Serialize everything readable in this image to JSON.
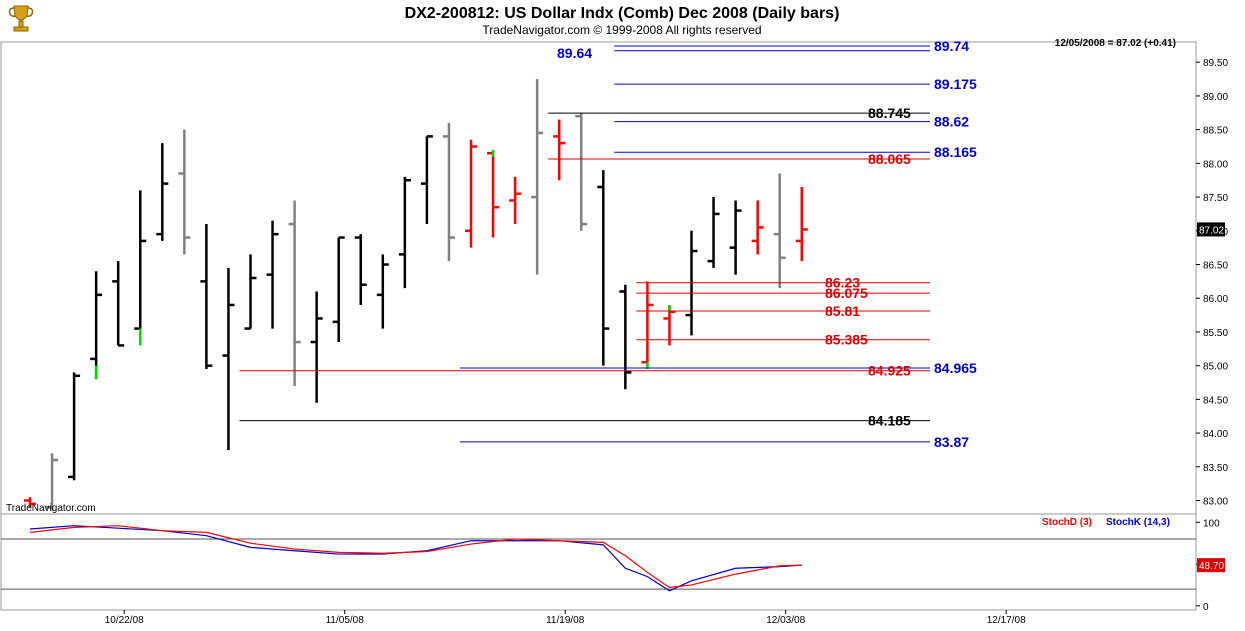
{
  "header": {
    "title": "DX2-200812:  US Dollar Indx (Comb) Dec 2008  (Daily bars)",
    "copyright": "TradeNavigator.com © 1999-2008 All rights reserved",
    "last_quote": "12/05/2008 = 87.02 (+0.41)",
    "watermark": "TradeNavigator.com",
    "logo_icon": "trophy-icon"
  },
  "colors": {
    "bar_black": "#000000",
    "bar_gray": "#808080",
    "bar_red": "#ff0000",
    "bar_green": "#00dd00",
    "level_blue": "#0000cc",
    "level_red": "#dd0000",
    "level_black": "#000000",
    "stoch_d": "#ff0000",
    "stoch_k": "#0000cc"
  },
  "chart_data": [
    {
      "type": "ohlc",
      "ylim": [
        82.8,
        89.8
      ],
      "y_ticks": [
        "83.00",
        "83.50",
        "84.00",
        "84.50",
        "85.00",
        "85.50",
        "86.00",
        "86.50",
        "87.00",
        "87.50",
        "88.00",
        "88.50",
        "89.00",
        "89.50"
      ],
      "y_tick_values": [
        83.0,
        83.5,
        84.0,
        84.5,
        85.0,
        85.5,
        86.0,
        86.5,
        87.0,
        87.5,
        88.0,
        88.5,
        89.0,
        89.5
      ],
      "x_labels": [
        "10/22/08",
        "11/05/08",
        "11/19/08",
        "12/03/08",
        "12/17/08"
      ],
      "x_label_days": [
        4,
        14,
        24,
        34,
        44
      ],
      "last_price_label": "87.02",
      "last_price": 87.02,
      "bars": [
        {
          "d": 0,
          "o": 83.0,
          "h": 83.05,
          "l": 82.9,
          "c": 82.95,
          "col": "red"
        },
        {
          "d": 1,
          "o": 82.9,
          "h": 83.7,
          "l": 82.85,
          "c": 83.6,
          "col": "gray"
        },
        {
          "d": 2,
          "o": 83.35,
          "h": 84.9,
          "l": 83.3,
          "c": 84.85,
          "col": "black"
        },
        {
          "d": 3,
          "o": 85.1,
          "h": 86.4,
          "l": 84.8,
          "c": 86.05,
          "col": "black",
          "mark": {
            "from": 84.8,
            "to": 85.0,
            "col": "green"
          }
        },
        {
          "d": 4,
          "o": 86.25,
          "h": 86.55,
          "l": 85.3,
          "c": 85.3,
          "col": "black"
        },
        {
          "d": 5,
          "o": 85.55,
          "h": 87.6,
          "l": 85.3,
          "c": 86.85,
          "col": "black",
          "mark": {
            "from": 85.3,
            "to": 85.55,
            "col": "green"
          }
        },
        {
          "d": 6,
          "o": 86.95,
          "h": 88.3,
          "l": 86.85,
          "c": 87.7,
          "col": "black"
        },
        {
          "d": 7,
          "o": 87.85,
          "h": 88.5,
          "l": 86.65,
          "c": 86.9,
          "col": "gray"
        },
        {
          "d": 8,
          "o": 86.25,
          "h": 87.1,
          "l": 84.95,
          "c": 85.0,
          "col": "black"
        },
        {
          "d": 9,
          "o": 85.15,
          "h": 86.45,
          "l": 83.75,
          "c": 85.9,
          "col": "black"
        },
        {
          "d": 10,
          "o": 85.55,
          "h": 86.65,
          "l": 85.55,
          "c": 86.3,
          "col": "black"
        },
        {
          "d": 11,
          "o": 86.35,
          "h": 87.15,
          "l": 85.55,
          "c": 86.95,
          "col": "black"
        },
        {
          "d": 12,
          "o": 87.1,
          "h": 87.45,
          "l": 84.7,
          "c": 85.35,
          "col": "gray"
        },
        {
          "d": 13,
          "o": 85.35,
          "h": 86.1,
          "l": 84.45,
          "c": 85.7,
          "col": "black"
        },
        {
          "d": 14,
          "o": 85.65,
          "h": 86.9,
          "l": 85.35,
          "c": 86.9,
          "col": "black"
        },
        {
          "d": 15,
          "o": 86.9,
          "h": 86.95,
          "l": 85.9,
          "c": 86.2,
          "col": "black"
        },
        {
          "d": 16,
          "o": 86.05,
          "h": 86.65,
          "l": 85.55,
          "c": 86.5,
          "col": "black"
        },
        {
          "d": 17,
          "o": 86.65,
          "h": 87.8,
          "l": 86.15,
          "c": 87.75,
          "col": "black"
        },
        {
          "d": 18,
          "o": 87.7,
          "h": 88.4,
          "l": 87.1,
          "c": 88.4,
          "col": "black"
        },
        {
          "d": 19,
          "o": 88.4,
          "h": 88.6,
          "l": 86.55,
          "c": 86.9,
          "col": "gray"
        },
        {
          "d": 20,
          "o": 87.0,
          "h": 88.35,
          "l": 86.75,
          "c": 88.25,
          "col": "red"
        },
        {
          "d": 21,
          "o": 88.15,
          "h": 88.2,
          "l": 86.9,
          "c": 87.35,
          "col": "red",
          "mark": {
            "from": 88.1,
            "to": 88.2,
            "col": "green"
          }
        },
        {
          "d": 22,
          "o": 87.45,
          "h": 87.8,
          "l": 87.1,
          "c": 87.55,
          "col": "red"
        },
        {
          "d": 23,
          "o": 87.5,
          "h": 89.25,
          "l": 86.35,
          "c": 88.45,
          "col": "gray"
        },
        {
          "d": 24,
          "o": 88.4,
          "h": 88.65,
          "l": 87.75,
          "c": 88.3,
          "col": "red"
        },
        {
          "d": 25,
          "o": 88.7,
          "h": 88.75,
          "l": 87.0,
          "c": 87.1,
          "col": "gray"
        },
        {
          "d": 26,
          "o": 87.65,
          "h": 87.9,
          "l": 85.0,
          "c": 85.55,
          "col": "black"
        },
        {
          "d": 27,
          "o": 86.1,
          "h": 86.2,
          "l": 84.65,
          "c": 84.9,
          "col": "black"
        },
        {
          "d": 28,
          "o": 85.05,
          "h": 86.25,
          "l": 85.0,
          "c": 85.9,
          "col": "red",
          "mark": {
            "from": 84.95,
            "to": 85.05,
            "col": "green"
          }
        },
        {
          "d": 29,
          "o": 85.7,
          "h": 85.9,
          "l": 85.3,
          "c": 85.8,
          "col": "red",
          "mark": {
            "from": 85.8,
            "to": 85.9,
            "col": "green"
          }
        },
        {
          "d": 30,
          "o": 85.75,
          "h": 87.0,
          "l": 85.45,
          "c": 86.7,
          "col": "black"
        },
        {
          "d": 31,
          "o": 86.55,
          "h": 87.5,
          "l": 86.45,
          "c": 87.25,
          "col": "black"
        },
        {
          "d": 32,
          "o": 86.75,
          "h": 87.45,
          "l": 86.35,
          "c": 87.3,
          "col": "black"
        },
        {
          "d": 33,
          "o": 86.85,
          "h": 87.45,
          "l": 86.65,
          "c": 87.05,
          "col": "red"
        },
        {
          "d": 34,
          "o": 86.95,
          "h": 87.85,
          "l": 86.15,
          "c": 86.6,
          "col": "gray"
        },
        {
          "d": 35,
          "o": 86.85,
          "h": 87.65,
          "l": 86.55,
          "c": 87.02,
          "col": "red"
        }
      ],
      "levels": [
        {
          "value": 89.74,
          "label": "89.74",
          "col": "blue",
          "from_day": 26.5
        },
        {
          "value": 89.67,
          "label": "",
          "col": "blue",
          "from_day": 26.5
        },
        {
          "value": 89.175,
          "label": "89.175",
          "col": "blue",
          "from_day": 26.5
        },
        {
          "value": 88.745,
          "label": "88.745",
          "col": "black",
          "from_day": 23.5
        },
        {
          "value": 88.62,
          "label": "88.62",
          "col": "blue",
          "from_day": 26.5
        },
        {
          "value": 88.165,
          "label": "88.165",
          "col": "blue",
          "from_day": 26.5
        },
        {
          "value": 88.065,
          "label": "88.065",
          "col": "red",
          "from_day": 23.5
        },
        {
          "value": 86.23,
          "label": "86.23",
          "col": "red",
          "from_day": 27.5
        },
        {
          "value": 86.075,
          "label": "86.075",
          "col": "red",
          "from_day": 27.5
        },
        {
          "value": 85.81,
          "label": "85.81",
          "col": "red",
          "from_day": 27.5
        },
        {
          "value": 85.385,
          "label": "85.385",
          "col": "red",
          "from_day": 27.5
        },
        {
          "value": 84.965,
          "label": "84.965",
          "col": "blue",
          "from_day": 19.5
        },
        {
          "value": 84.925,
          "label": "84.925",
          "col": "red",
          "from_day": 9.5
        },
        {
          "value": 84.185,
          "label": "84.185",
          "col": "black",
          "from_day": 9.5
        },
        {
          "value": 83.87,
          "label": "83.87",
          "col": "blue",
          "from_day": 19.5
        }
      ],
      "extra_label": {
        "value": 89.64,
        "label": "89.64",
        "col": "blue"
      }
    },
    {
      "type": "line",
      "ylim": [
        -5,
        110
      ],
      "y_ticks": [
        "100",
        "50",
        "0"
      ],
      "y_tick_values": [
        100,
        50,
        0
      ],
      "hlines": [
        80,
        20
      ],
      "legend": [
        {
          "name": "StochD (3)",
          "col": "red"
        },
        {
          "name": "StochK (14,3)",
          "col": "blue"
        }
      ],
      "last_value_label": "48.70",
      "last_value": 48.7,
      "series": [
        {
          "name": "StochK (14,3)",
          "col": "blue",
          "x": [
            0,
            2,
            4,
            6,
            8,
            10,
            12,
            14,
            16,
            18,
            20,
            22,
            24,
            26,
            27,
            28,
            29,
            30,
            32,
            34,
            35
          ],
          "values": [
            92,
            96,
            93,
            90,
            84,
            70,
            66,
            62,
            62,
            66,
            78,
            78,
            78,
            73,
            45,
            35,
            18,
            30,
            45,
            47,
            48.7
          ]
        },
        {
          "name": "StochD (3)",
          "col": "red",
          "x": [
            0,
            2,
            4,
            6,
            8,
            10,
            12,
            14,
            16,
            18,
            20,
            22,
            24,
            26,
            27,
            28,
            29,
            30,
            32,
            34,
            35
          ],
          "values": [
            88,
            94,
            96,
            90,
            88,
            75,
            68,
            64,
            63,
            65,
            74,
            80,
            78,
            76,
            60,
            40,
            22,
            25,
            38,
            48,
            48.7
          ]
        }
      ]
    }
  ]
}
